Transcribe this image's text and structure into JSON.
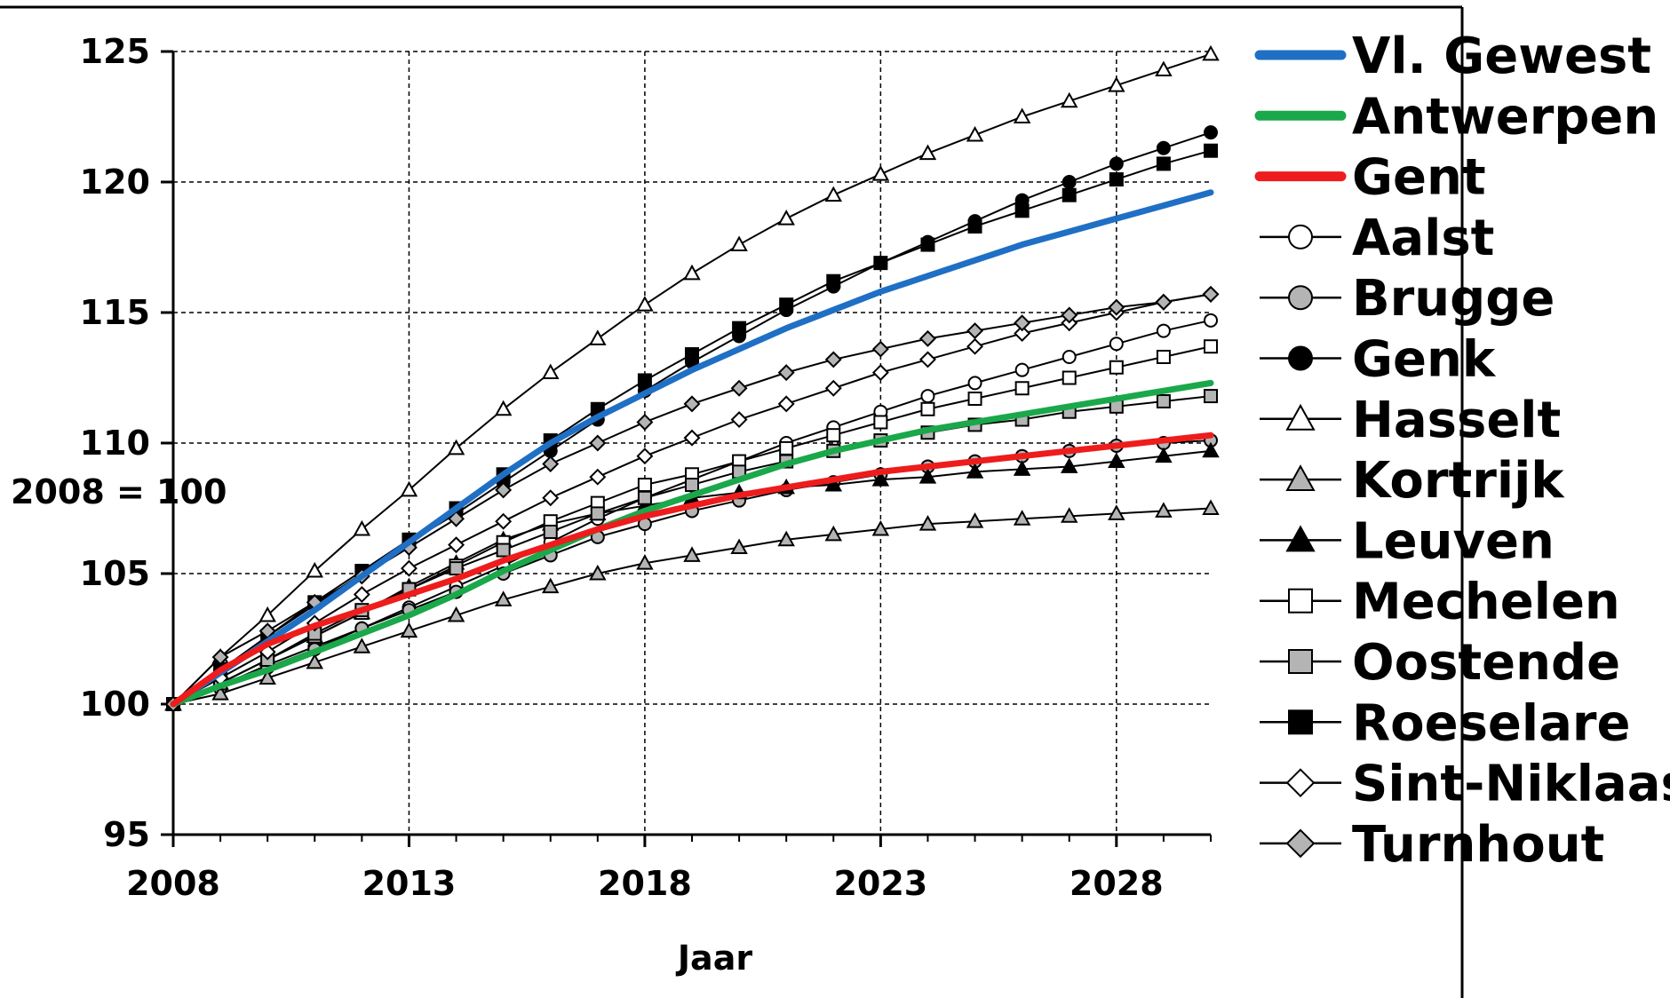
{
  "chart_data": {
    "type": "line",
    "xlabel": "Jaar",
    "ylabel": "2008 = 100",
    "xlim": [
      2008,
      2030
    ],
    "ylim": [
      95,
      125
    ],
    "xticks": [
      2008,
      2013,
      2018,
      2023,
      2028
    ],
    "yticks": [
      95,
      100,
      105,
      110,
      115,
      120,
      125
    ],
    "grid": true,
    "legend_position": "right",
    "x": [
      2008,
      2009,
      2010,
      2011,
      2012,
      2013,
      2014,
      2015,
      2016,
      2017,
      2018,
      2019,
      2020,
      2021,
      2022,
      2023,
      2024,
      2025,
      2026,
      2027,
      2028,
      2029,
      2030
    ],
    "series": [
      {
        "name": "Vl. Gewest",
        "style": "thick",
        "color": "#1f6fc5",
        "values": [
          100,
          101.2,
          102.4,
          103.6,
          104.9,
          106.2,
          107.5,
          108.8,
          110.0,
          111.0,
          111.9,
          112.8,
          113.6,
          114.4,
          115.1,
          115.8,
          116.4,
          117.0,
          117.6,
          118.1,
          118.6,
          119.1,
          119.6
        ]
      },
      {
        "name": "Antwerpen",
        "style": "thick",
        "color": "#1aa84a",
        "values": [
          100,
          100.7,
          101.3,
          102.0,
          102.7,
          103.4,
          104.2,
          105.1,
          105.9,
          106.7,
          107.4,
          108.0,
          108.6,
          109.2,
          109.7,
          110.1,
          110.5,
          110.8,
          111.1,
          111.4,
          111.7,
          112.0,
          112.3
        ]
      },
      {
        "name": "Gent",
        "style": "thick",
        "color": "#ee1c1c",
        "values": [
          100,
          101.3,
          102.3,
          103.0,
          103.6,
          104.2,
          104.8,
          105.5,
          106.1,
          106.7,
          107.2,
          107.6,
          108.0,
          108.3,
          108.6,
          108.9,
          109.1,
          109.3,
          109.5,
          109.7,
          109.9,
          110.1,
          110.3
        ]
      },
      {
        "name": "Aalst",
        "marker": "circle",
        "fill": "#ffffff",
        "values": [
          100,
          100.7,
          101.5,
          102.2,
          102.9,
          103.7,
          104.5,
          105.3,
          106.2,
          107.1,
          107.9,
          108.6,
          109.3,
          110.0,
          110.6,
          111.2,
          111.8,
          112.3,
          112.8,
          113.3,
          113.8,
          114.3,
          114.7
        ]
      },
      {
        "name": "Brugge",
        "marker": "circle",
        "fill": "#b4b4b4",
        "values": [
          100,
          100.6,
          101.4,
          102.1,
          102.9,
          103.6,
          104.3,
          105.0,
          105.7,
          106.4,
          106.9,
          107.4,
          107.8,
          108.2,
          108.5,
          108.8,
          109.1,
          109.3,
          109.5,
          109.7,
          109.9,
          110.0,
          110.1
        ]
      },
      {
        "name": "Genk",
        "marker": "circle",
        "fill": "#000000",
        "values": [
          100,
          101.3,
          102.6,
          103.8,
          105.0,
          106.2,
          107.3,
          108.5,
          109.7,
          110.9,
          112.0,
          113.1,
          114.1,
          115.1,
          116.0,
          116.9,
          117.7,
          118.5,
          119.3,
          120.0,
          120.7,
          121.3,
          121.9
        ]
      },
      {
        "name": "Hasselt",
        "marker": "triangle",
        "fill": "#ffffff",
        "values": [
          100,
          101.8,
          103.4,
          105.1,
          106.7,
          108.2,
          109.8,
          111.3,
          112.7,
          114.0,
          115.3,
          116.5,
          117.6,
          118.6,
          119.5,
          120.3,
          121.1,
          121.8,
          122.5,
          123.1,
          123.7,
          124.3,
          124.9
        ]
      },
      {
        "name": "Kortrijk",
        "marker": "triangle",
        "fill": "#b4b4b4",
        "values": [
          100,
          100.4,
          101.0,
          101.6,
          102.2,
          102.8,
          103.4,
          104.0,
          104.5,
          105.0,
          105.4,
          105.7,
          106.0,
          106.3,
          106.5,
          106.7,
          106.9,
          107.0,
          107.1,
          107.2,
          107.3,
          107.4,
          107.5
        ]
      },
      {
        "name": "Leuven",
        "marker": "triangle",
        "fill": "#000000",
        "values": [
          100,
          100.8,
          101.7,
          102.6,
          103.5,
          104.5,
          105.4,
          106.3,
          106.9,
          107.3,
          107.6,
          107.9,
          108.1,
          108.3,
          108.4,
          108.6,
          108.7,
          108.9,
          109.0,
          109.1,
          109.3,
          109.5,
          109.7
        ]
      },
      {
        "name": "Mechelen",
        "marker": "square",
        "fill": "#ffffff",
        "values": [
          100,
          100.8,
          101.7,
          102.6,
          103.5,
          104.4,
          105.3,
          106.2,
          107.0,
          107.7,
          108.4,
          108.8,
          109.3,
          109.8,
          110.3,
          110.8,
          111.3,
          111.7,
          112.1,
          112.5,
          112.9,
          113.3,
          113.7
        ]
      },
      {
        "name": "Oostende",
        "marker": "square",
        "fill": "#b4b4b4",
        "values": [
          100,
          100.8,
          101.7,
          102.7,
          103.6,
          104.4,
          105.2,
          105.9,
          106.6,
          107.3,
          107.9,
          108.4,
          108.9,
          109.3,
          109.7,
          110.1,
          110.4,
          110.7,
          110.9,
          111.2,
          111.4,
          111.6,
          111.8
        ]
      },
      {
        "name": "Roeselare",
        "marker": "square",
        "fill": "#000000",
        "values": [
          100,
          101.3,
          102.6,
          103.9,
          105.1,
          106.3,
          107.5,
          108.8,
          110.1,
          111.3,
          112.4,
          113.4,
          114.4,
          115.3,
          116.2,
          116.9,
          117.6,
          118.3,
          118.9,
          119.5,
          120.1,
          120.7,
          121.2
        ]
      },
      {
        "name": "Sint-Niklaas",
        "marker": "diamond",
        "fill": "#ffffff",
        "values": [
          100,
          101.0,
          102.0,
          103.1,
          104.2,
          105.2,
          106.1,
          107.0,
          107.9,
          108.7,
          109.5,
          110.2,
          110.9,
          111.5,
          112.1,
          112.7,
          113.2,
          113.7,
          114.2,
          114.6,
          115.0,
          115.4,
          115.7
        ]
      },
      {
        "name": "Turnhout",
        "marker": "diamond",
        "fill": "#b4b4b4",
        "values": [
          100,
          101.8,
          102.8,
          103.9,
          104.9,
          106.0,
          107.1,
          108.2,
          109.2,
          110.0,
          110.8,
          111.5,
          112.1,
          112.7,
          113.2,
          113.6,
          114.0,
          114.3,
          114.6,
          114.9,
          115.2,
          115.4,
          115.7
        ]
      }
    ]
  }
}
